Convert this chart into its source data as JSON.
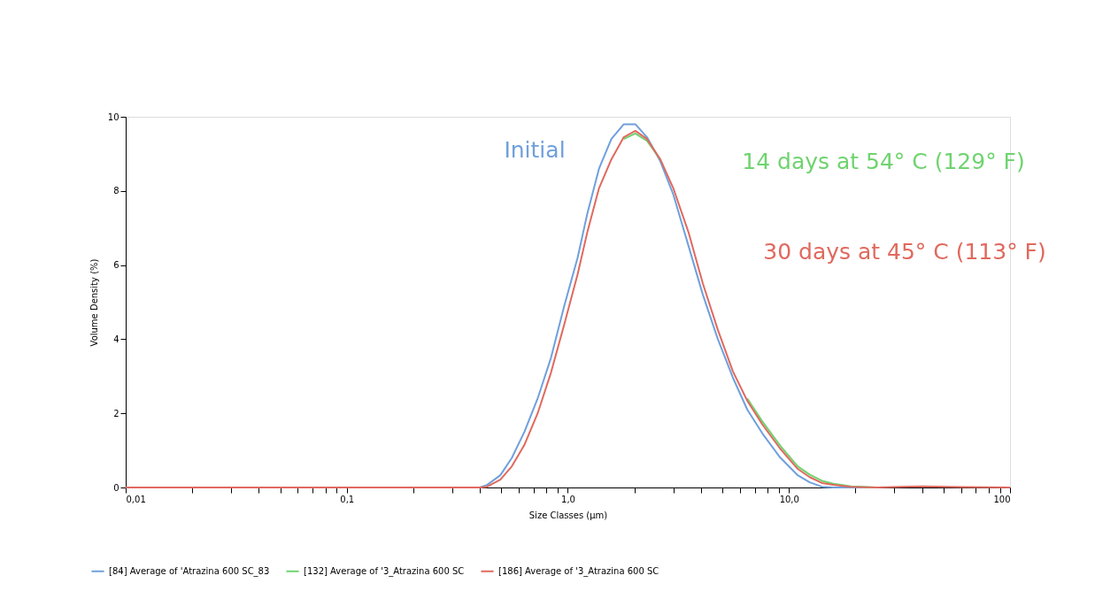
{
  "chart_data": {
    "type": "line",
    "xlabel": "Size Classes (µm)",
    "ylabel": "Volume Density (%)",
    "log": "x",
    "xlim": [
      0.01,
      100
    ],
    "ylim": [
      0,
      10
    ],
    "xticks": [
      {
        "value": 0.01,
        "label": "0,01"
      },
      {
        "value": 0.02,
        "label": null
      },
      {
        "value": 0.03,
        "label": null
      },
      {
        "value": 0.04,
        "label": null
      },
      {
        "value": 0.05,
        "label": null
      },
      {
        "value": 0.06,
        "label": null
      },
      {
        "value": 0.07,
        "label": null
      },
      {
        "value": 0.08,
        "label": null
      },
      {
        "value": 0.09,
        "label": null
      },
      {
        "value": 0.1,
        "label": "0,1"
      },
      {
        "value": 0.2,
        "label": null
      },
      {
        "value": 0.3,
        "label": null
      },
      {
        "value": 0.4,
        "label": null
      },
      {
        "value": 0.5,
        "label": null
      },
      {
        "value": 0.6,
        "label": null
      },
      {
        "value": 0.7,
        "label": null
      },
      {
        "value": 0.8,
        "label": null
      },
      {
        "value": 0.9,
        "label": null
      },
      {
        "value": 1,
        "label": "1,0"
      },
      {
        "value": 2,
        "label": null
      },
      {
        "value": 3,
        "label": null
      },
      {
        "value": 4,
        "label": null
      },
      {
        "value": 5,
        "label": null
      },
      {
        "value": 6,
        "label": null
      },
      {
        "value": 7,
        "label": null
      },
      {
        "value": 8,
        "label": null
      },
      {
        "value": 9,
        "label": null
      },
      {
        "value": 10,
        "label": "10,0"
      },
      {
        "value": 20,
        "label": null
      },
      {
        "value": 30,
        "label": null
      },
      {
        "value": 40,
        "label": null
      },
      {
        "value": 50,
        "label": null
      },
      {
        "value": 60,
        "label": null
      },
      {
        "value": 70,
        "label": null
      },
      {
        "value": 80,
        "label": null
      },
      {
        "value": 90,
        "label": null
      },
      {
        "value": 100,
        "label": "100"
      }
    ],
    "yticks": [
      0,
      2,
      4,
      6,
      8,
      10
    ],
    "grid": false,
    "legend": "bottom",
    "marker": "none",
    "line_style": "solid",
    "x": [
      0.01,
      0.4,
      0.431,
      0.495,
      0.558,
      0.636,
      0.73,
      0.839,
      0.963,
      1.107,
      1.226,
      1.383,
      1.573,
      1.79,
      2.02,
      2.28,
      2.62,
      3.0,
      3.52,
      4.08,
      4.77,
      5.58,
      6.48,
      7.58,
      9.12,
      10.96,
      12.4,
      14.1,
      15.9,
      19.1,
      25,
      40,
      60,
      100
    ],
    "series": [
      {
        "name": "[84] Average of 'Atrazina 600 SC_83",
        "color": "#6fa0dc",
        "values": [
          0,
          0,
          0.07,
          0.33,
          0.8,
          1.5,
          2.4,
          3.5,
          4.9,
          6.2,
          7.4,
          8.6,
          9.4,
          9.8,
          9.8,
          9.45,
          8.8,
          7.9,
          6.5,
          5.2,
          4.0,
          2.96,
          2.1,
          1.46,
          0.81,
          0.33,
          0.14,
          0.02,
          0,
          0,
          0,
          null,
          null,
          null
        ]
      },
      {
        "name": "[132] Average of '3_Atrazina 600 SC",
        "color": "#6fd36f",
        "values": [
          null,
          null,
          null,
          null,
          null,
          null,
          null,
          null,
          null,
          null,
          null,
          null,
          null,
          9.4,
          9.55,
          9.35,
          8.85,
          null,
          null,
          null,
          null,
          null,
          2.4,
          1.78,
          1.13,
          0.57,
          0.35,
          0.18,
          0.1,
          0.03,
          0,
          null,
          null,
          null
        ]
      },
      {
        "name": "[186] Average of '3_Atrazina 600 SC",
        "color": "#e0695e",
        "values": [
          0,
          0,
          0.02,
          0.21,
          0.57,
          1.15,
          2.0,
          3.1,
          4.4,
          5.75,
          6.9,
          8.07,
          8.85,
          9.45,
          9.62,
          9.4,
          8.85,
          8.07,
          6.87,
          5.5,
          4.25,
          3.13,
          2.34,
          1.7,
          1.05,
          0.5,
          0.28,
          0.12,
          0.07,
          0.02,
          0,
          0.03,
          0.01,
          0
        ]
      }
    ],
    "annotations": [
      "Initial",
      "14 days at 54° C (129° F)",
      "30 days at 45° C (113° F)"
    ]
  }
}
